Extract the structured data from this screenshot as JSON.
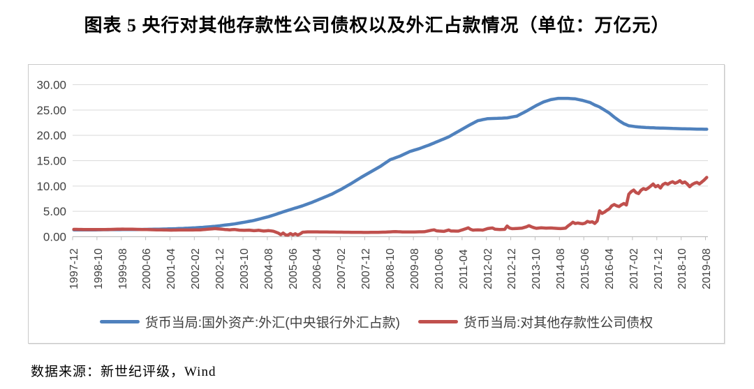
{
  "title": "图表 5  央行对其他存款性公司债权以及外汇占款情况（单位：万亿元）",
  "source_note": "数据来源：新世纪评级，Wind",
  "colors": {
    "fx_line": "#4F81BD",
    "claims_line": "#C0504D",
    "gridline": "#D9D9D9",
    "axis": "#BFBFBF",
    "tick_label": "#404040",
    "legend_text": "#404040",
    "chart_border": "#C9C9C9"
  },
  "chart_data": {
    "type": "line",
    "title": "图表 5  央行对其他存款性公司债权以及外汇占款情况（单位：万亿元）",
    "xlabel": "",
    "ylabel": "",
    "unit": "万亿元",
    "ylim": [
      0,
      30
    ],
    "y_tick_step": 5,
    "y_tick_labels_top_to_bottom": [
      "30.00",
      "25.00",
      "20.00",
      "15.00",
      "10.00",
      "5.00",
      "0.00"
    ],
    "x_tick_labels": [
      "1997-12",
      "1998-10",
      "1999-08",
      "2000-06",
      "2001-04",
      "2002-02",
      "2002-12",
      "2003-10",
      "2004-08",
      "2005-06",
      "2006-04",
      "2007-02",
      "2007-12",
      "2008-10",
      "2009-08",
      "2010-06",
      "2011-04",
      "2012-02",
      "2012-12",
      "2013-10",
      "2014-08",
      "2015-06",
      "2016-04",
      "2017-02",
      "2017-12",
      "2018-10",
      "2019-08"
    ],
    "x_axis_note": "monthly categories; point index 0 = 1997-12, index 260 = 2019-08, tick labels every 10 months",
    "grid": "horizontal",
    "legend_position": "bottom",
    "series": [
      {
        "name": "货币当局:国外资产:外汇(中央银行外汇占款)",
        "color": "#4F81BD",
        "points_format": "[month_index_from_1997-12, value_trillion_yuan]",
        "points": [
          [
            0,
            1.35
          ],
          [
            8,
            1.35
          ],
          [
            14,
            1.38
          ],
          [
            20,
            1.4
          ],
          [
            26,
            1.42
          ],
          [
            32,
            1.46
          ],
          [
            38,
            1.52
          ],
          [
            44,
            1.62
          ],
          [
            50,
            1.75
          ],
          [
            54,
            1.88
          ],
          [
            58,
            2.05
          ],
          [
            62,
            2.28
          ],
          [
            66,
            2.52
          ],
          [
            70,
            2.85
          ],
          [
            74,
            3.2
          ],
          [
            78,
            3.7
          ],
          [
            80,
            3.95
          ],
          [
            83,
            4.4
          ],
          [
            86,
            4.9
          ],
          [
            90,
            5.5
          ],
          [
            94,
            6.1
          ],
          [
            98,
            6.8
          ],
          [
            102,
            7.6
          ],
          [
            106,
            8.4
          ],
          [
            110,
            9.4
          ],
          [
            114,
            10.5
          ],
          [
            118,
            11.7
          ],
          [
            122,
            12.8
          ],
          [
            126,
            13.9
          ],
          [
            130,
            15.2
          ],
          [
            134,
            15.9
          ],
          [
            138,
            16.8
          ],
          [
            142,
            17.4
          ],
          [
            146,
            18.1
          ],
          [
            150,
            18.9
          ],
          [
            154,
            19.7
          ],
          [
            158,
            20.8
          ],
          [
            162,
            21.9
          ],
          [
            166,
            22.9
          ],
          [
            170,
            23.3
          ],
          [
            174,
            23.35
          ],
          [
            178,
            23.45
          ],
          [
            182,
            23.8
          ],
          [
            186,
            24.8
          ],
          [
            190,
            25.9
          ],
          [
            193,
            26.6
          ],
          [
            196,
            27.05
          ],
          [
            199,
            27.3
          ],
          [
            203,
            27.3
          ],
          [
            206,
            27.2
          ],
          [
            209,
            26.9
          ],
          [
            212,
            26.5
          ],
          [
            214,
            26.0
          ],
          [
            216,
            25.6
          ],
          [
            218,
            25.0
          ],
          [
            220,
            24.4
          ],
          [
            222,
            23.6
          ],
          [
            224,
            22.9
          ],
          [
            226,
            22.3
          ],
          [
            228,
            21.9
          ],
          [
            231,
            21.7
          ],
          [
            235,
            21.55
          ],
          [
            240,
            21.45
          ],
          [
            245,
            21.38
          ],
          [
            250,
            21.3
          ],
          [
            255,
            21.25
          ],
          [
            260,
            21.2
          ]
        ]
      },
      {
        "name": "货币当局:对其他存款性公司债权",
        "color": "#C0504D",
        "points_format": "[month_index_from_1997-12, value_trillion_yuan]",
        "points": [
          [
            0,
            1.45
          ],
          [
            4,
            1.42
          ],
          [
            8,
            1.4
          ],
          [
            12,
            1.4
          ],
          [
            16,
            1.45
          ],
          [
            20,
            1.5
          ],
          [
            24,
            1.47
          ],
          [
            28,
            1.42
          ],
          [
            32,
            1.38
          ],
          [
            36,
            1.33
          ],
          [
            40,
            1.3
          ],
          [
            44,
            1.32
          ],
          [
            48,
            1.32
          ],
          [
            52,
            1.35
          ],
          [
            56,
            1.52
          ],
          [
            58,
            1.6
          ],
          [
            60,
            1.52
          ],
          [
            62,
            1.42
          ],
          [
            64,
            1.35
          ],
          [
            66,
            1.42
          ],
          [
            68,
            1.3
          ],
          [
            70,
            1.25
          ],
          [
            72,
            1.3
          ],
          [
            74,
            1.18
          ],
          [
            76,
            1.26
          ],
          [
            78,
            1.12
          ],
          [
            80,
            1.2
          ],
          [
            82,
            1.08
          ],
          [
            84,
            0.72
          ],
          [
            85,
            0.4
          ],
          [
            86,
            0.72
          ],
          [
            87,
            0.34
          ],
          [
            88,
            0.3
          ],
          [
            89,
            0.62
          ],
          [
            90,
            0.34
          ],
          [
            91,
            0.58
          ],
          [
            92,
            0.32
          ],
          [
            93,
            0.55
          ],
          [
            94,
            0.88
          ],
          [
            96,
            0.95
          ],
          [
            100,
            0.95
          ],
          [
            104,
            0.92
          ],
          [
            108,
            0.9
          ],
          [
            112,
            0.88
          ],
          [
            116,
            0.86
          ],
          [
            120,
            0.84
          ],
          [
            124,
            0.86
          ],
          [
            128,
            0.9
          ],
          [
            132,
            1.0
          ],
          [
            134,
            0.96
          ],
          [
            136,
            0.92
          ],
          [
            140,
            0.94
          ],
          [
            144,
            0.98
          ],
          [
            147,
            1.28
          ],
          [
            148,
            1.35
          ],
          [
            149,
            1.15
          ],
          [
            152,
            1.05
          ],
          [
            154,
            1.32
          ],
          [
            155,
            1.12
          ],
          [
            158,
            1.1
          ],
          [
            160,
            1.4
          ],
          [
            162,
            1.75
          ],
          [
            163,
            1.45
          ],
          [
            164,
            1.3
          ],
          [
            166,
            1.35
          ],
          [
            168,
            1.3
          ],
          [
            170,
            1.6
          ],
          [
            172,
            1.72
          ],
          [
            173,
            1.48
          ],
          [
            175,
            1.4
          ],
          [
            177,
            1.45
          ],
          [
            178,
            2.1
          ],
          [
            179,
            1.7
          ],
          [
            180,
            1.58
          ],
          [
            182,
            1.62
          ],
          [
            184,
            1.68
          ],
          [
            186,
            1.95
          ],
          [
            187,
            2.18
          ],
          [
            188,
            1.95
          ],
          [
            189,
            1.78
          ],
          [
            190,
            1.65
          ],
          [
            192,
            1.75
          ],
          [
            194,
            1.68
          ],
          [
            196,
            1.72
          ],
          [
            198,
            1.65
          ],
          [
            200,
            1.6
          ],
          [
            202,
            1.68
          ],
          [
            203,
            2.1
          ],
          [
            204,
            2.45
          ],
          [
            205,
            2.85
          ],
          [
            206,
            2.6
          ],
          [
            207,
            2.7
          ],
          [
            208,
            2.62
          ],
          [
            209,
            2.55
          ],
          [
            210,
            2.65
          ],
          [
            211,
            3.02
          ],
          [
            212,
            2.85
          ],
          [
            213,
            2.95
          ],
          [
            214,
            2.62
          ],
          [
            215,
            3.1
          ],
          [
            216,
            5.1
          ],
          [
            217,
            4.6
          ],
          [
            218,
            4.85
          ],
          [
            219,
            5.2
          ],
          [
            220,
            5.5
          ],
          [
            221,
            6.1
          ],
          [
            222,
            6.35
          ],
          [
            223,
            6.1
          ],
          [
            224,
            5.95
          ],
          [
            225,
            6.3
          ],
          [
            226,
            6.55
          ],
          [
            227,
            6.25
          ],
          [
            228,
            8.4
          ],
          [
            229,
            8.9
          ],
          [
            230,
            9.2
          ],
          [
            231,
            8.7
          ],
          [
            232,
            8.5
          ],
          [
            233,
            9.15
          ],
          [
            234,
            9.5
          ],
          [
            235,
            9.3
          ],
          [
            236,
            9.6
          ],
          [
            237,
            10.0
          ],
          [
            238,
            10.4
          ],
          [
            239,
            9.85
          ],
          [
            240,
            10.1
          ],
          [
            241,
            9.6
          ],
          [
            242,
            10.3
          ],
          [
            243,
            10.55
          ],
          [
            244,
            10.35
          ],
          [
            245,
            10.65
          ],
          [
            246,
            10.85
          ],
          [
            247,
            10.55
          ],
          [
            248,
            10.75
          ],
          [
            249,
            11.05
          ],
          [
            250,
            10.6
          ],
          [
            251,
            10.8
          ],
          [
            252,
            10.4
          ],
          [
            253,
            9.85
          ],
          [
            254,
            10.3
          ],
          [
            255,
            10.55
          ],
          [
            256,
            10.7
          ],
          [
            257,
            10.4
          ],
          [
            258,
            10.8
          ],
          [
            259,
            11.2
          ],
          [
            260,
            11.7
          ]
        ]
      }
    ]
  }
}
